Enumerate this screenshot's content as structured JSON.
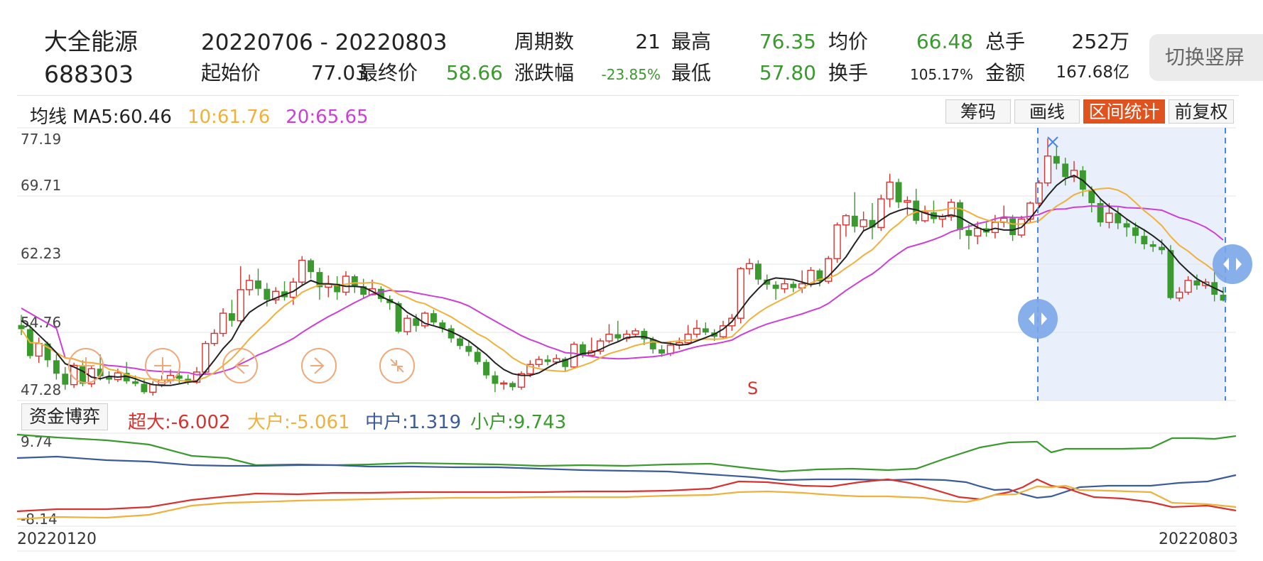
{
  "header": {
    "stock_name": "大全能源",
    "stock_code": "688303",
    "date_range": "20220706  - 20220803",
    "labels": {
      "periods": "周期数",
      "high": "最高",
      "avg": "均价",
      "total_vol": "总手",
      "start_price": "起始价",
      "end_price": "最终价",
      "change_pct": "涨跌幅",
      "low": "最低",
      "turnover": "换手",
      "amount": "金额"
    },
    "values": {
      "periods": "21",
      "high": "76.35",
      "avg": "66.48",
      "total_vol": "252万",
      "start_price": "77.03",
      "end_price": "58.66",
      "change_pct": "-23.85%",
      "low": "57.80",
      "turnover": "105.17%",
      "amount": "167.68亿"
    },
    "switch_button": "切换竖屏"
  },
  "ma_bar": {
    "label": "均线",
    "ma5": "MA5:60.46",
    "ma10": "10:61.76",
    "ma20": "20:65.65"
  },
  "toolbar": {
    "chips": "筹码",
    "draw": "画线",
    "range_stats": "区间统计",
    "adjust": "前复权"
  },
  "price_axis": [
    "77.19",
    "69.71",
    "62.23",
    "54.76",
    "47.28"
  ],
  "marker_s": "S",
  "fund_panel": {
    "button": "资金博弈",
    "super_large": "超大:-6.002",
    "large": "大户:-5.061",
    "medium": "中户:1.319",
    "small": "小户:9.743",
    "axis_top": "9.74",
    "axis_bottom": "-8.14"
  },
  "dates": {
    "start": "20220120",
    "end": "20220803"
  },
  "colors": {
    "up": "#d8322f",
    "down": "#3a9a2e",
    "ma5": "#222222",
    "ma10": "#f0b13c",
    "ma20": "#cc3fd6",
    "medium": "#3b5b9a",
    "selection": "#e9f0fb",
    "selection_line": "#4a86e0",
    "accent": "#e0531f"
  },
  "icons": [
    "add-icon",
    "arrow-left-icon",
    "arrow-right-icon",
    "shrink-icon",
    "range-handle-icon",
    "cross-marker-icon"
  ],
  "chart_data": {
    "type": "candlestick",
    "price_range": [
      47.28,
      77.19
    ],
    "candles": [
      [
        55,
        54.5,
        56.2,
        53.8
      ],
      [
        54.5,
        51.3,
        55,
        51
      ],
      [
        51.3,
        52.8,
        53.5,
        50.5
      ],
      [
        52.8,
        50.8,
        53,
        50
      ],
      [
        50.8,
        49.2,
        51.5,
        48.5
      ],
      [
        49.2,
        47.9,
        50,
        47.3
      ],
      [
        47.9,
        50.2,
        50.5,
        47.5
      ],
      [
        50.2,
        48,
        50.8,
        47.7
      ],
      [
        48,
        49.8,
        50.2,
        47.6
      ],
      [
        49.8,
        48.9,
        51.5,
        48.4
      ],
      [
        48.9,
        48.5,
        49.5,
        48
      ],
      [
        48.5,
        49.3,
        49.8,
        48.2
      ],
      [
        49.3,
        48.3,
        50.6,
        48
      ],
      [
        48.3,
        48,
        49,
        47.7
      ],
      [
        48,
        47,
        48.5,
        46.8
      ],
      [
        47,
        47.9,
        48.3,
        46.6
      ],
      [
        47.9,
        48.4,
        49,
        47.6
      ],
      [
        48.4,
        49,
        49.7,
        48
      ],
      [
        49,
        48.6,
        49.5,
        48.1
      ],
      [
        48.6,
        48.2,
        49.1,
        47.9
      ],
      [
        48.2,
        49.4,
        50,
        48
      ],
      [
        49.4,
        52.8,
        53.1,
        49.2
      ],
      [
        52.8,
        54,
        54.5,
        52.5
      ],
      [
        54,
        56.4,
        57,
        53.6
      ],
      [
        56.4,
        55.5,
        58,
        54.8
      ],
      [
        55.5,
        59.2,
        62,
        55
      ],
      [
        59.2,
        60.3,
        61,
        58.5
      ],
      [
        60.3,
        59.3,
        61.7,
        58.5
      ],
      [
        59.3,
        58,
        60,
        57.2
      ],
      [
        58,
        59,
        59.5,
        57.5
      ],
      [
        59,
        58.3,
        60.2,
        57.9
      ],
      [
        58.3,
        60.1,
        60.6,
        57.4
      ],
      [
        60.1,
        62.7,
        63.2,
        59.8
      ],
      [
        62.7,
        61.3,
        62.9,
        60.5
      ],
      [
        61.3,
        59.5,
        61.8,
        58
      ],
      [
        59.5,
        59.9,
        60.9,
        58.3
      ],
      [
        59.9,
        58.9,
        60.8,
        58
      ],
      [
        58.9,
        60.8,
        61.4,
        58.5
      ],
      [
        60.8,
        59.6,
        61,
        58.8
      ],
      [
        59.6,
        58.6,
        60.5,
        58.1
      ],
      [
        58.6,
        59.3,
        60.4,
        58.5
      ],
      [
        59.3,
        58.1,
        59.6,
        57.7
      ],
      [
        58.1,
        57.6,
        58.5,
        56.8
      ],
      [
        57.6,
        54.2,
        57.8,
        54
      ],
      [
        54.2,
        55.8,
        56.2,
        53.8
      ],
      [
        55.8,
        54.9,
        56.3,
        54.2
      ],
      [
        54.9,
        56.4,
        56.6,
        54.6
      ],
      [
        56.4,
        55.3,
        56.8,
        55
      ],
      [
        55.3,
        54.6,
        55.6,
        54.1
      ],
      [
        54.6,
        53.4,
        55,
        52.9
      ],
      [
        53.4,
        52.5,
        53.8,
        52.1
      ],
      [
        52.5,
        51.8,
        53.2,
        51.3
      ],
      [
        51.8,
        50.6,
        52.3,
        50.3
      ],
      [
        50.6,
        49,
        50.9,
        48.6
      ],
      [
        49,
        48,
        49.5,
        47
      ],
      [
        48,
        48.1,
        48.4,
        47.3
      ],
      [
        48.1,
        47.6,
        48.3,
        47.2
      ],
      [
        47.6,
        49.2,
        49.5,
        47.3
      ],
      [
        49.2,
        50.3,
        50.8,
        48.8
      ],
      [
        50.3,
        50.9,
        51.3,
        50
      ],
      [
        50.9,
        50.6,
        51.4,
        50.2
      ],
      [
        50.6,
        51,
        51.5,
        50.3
      ],
      [
        51,
        50,
        51.2,
        49.4
      ],
      [
        50,
        52.7,
        53,
        49.8
      ],
      [
        52.7,
        51.4,
        53,
        51.1
      ],
      [
        51.4,
        51.9,
        53.5,
        51.2
      ],
      [
        51.9,
        53.1,
        53.4,
        51.5
      ],
      [
        53.1,
        53.9,
        55.1,
        52.8
      ],
      [
        53.9,
        53.4,
        55.5,
        53
      ],
      [
        53.4,
        53.9,
        54.4,
        53
      ],
      [
        53.9,
        54.3,
        54.6,
        53.6
      ],
      [
        54.3,
        53.3,
        54.6,
        52.6
      ],
      [
        53.3,
        52.1,
        53.6,
        51.6
      ],
      [
        52.1,
        51.6,
        52.6,
        51.2
      ],
      [
        51.6,
        52.6,
        53.1,
        51.3
      ],
      [
        52.6,
        52.9,
        53.5,
        52.1
      ],
      [
        52.9,
        53.9,
        55,
        52.7
      ],
      [
        53.9,
        54.6,
        55.6,
        53.5
      ],
      [
        54.6,
        54.1,
        55.3,
        53.8
      ],
      [
        54.1,
        53.6,
        54.5,
        53.1
      ],
      [
        53.6,
        54.9,
        55.5,
        53.4
      ],
      [
        54.9,
        55.8,
        56.3,
        54.3
      ],
      [
        55.8,
        61.7,
        61.9,
        55.2
      ],
      [
        61.7,
        62.3,
        62.9,
        61
      ],
      [
        62.3,
        60.4,
        62.7,
        59.8
      ],
      [
        60.4,
        59.8,
        61,
        59.2
      ],
      [
        59.8,
        59.3,
        60.2,
        58
      ],
      [
        59.3,
        59.9,
        60.4,
        58.8
      ],
      [
        59.9,
        59.4,
        60.2,
        58.9
      ],
      [
        59.4,
        59.9,
        61.5,
        58.8
      ],
      [
        59.9,
        61.5,
        61.9,
        59.5
      ],
      [
        61.5,
        60.2,
        61.7,
        59.6
      ],
      [
        60.2,
        62.9,
        63.2,
        59.9
      ],
      [
        62.9,
        66.9,
        67.2,
        62.4
      ],
      [
        66.9,
        68,
        68.2,
        65.5
      ],
      [
        68,
        66.7,
        70.8,
        66
      ],
      [
        66.7,
        67.5,
        68.5,
        66.2
      ],
      [
        67.5,
        66.6,
        69.5,
        65.2
      ],
      [
        66.6,
        70,
        70.5,
        66.2
      ],
      [
        70,
        72,
        73,
        69
      ],
      [
        72,
        69.6,
        72.4,
        68.9
      ],
      [
        69.6,
        69.8,
        70.3,
        68.1
      ],
      [
        69.8,
        67.4,
        71.2,
        67
      ],
      [
        67.4,
        68.4,
        69.2,
        67.2
      ],
      [
        68.4,
        67.6,
        69.8,
        67.1
      ],
      [
        67.6,
        67.9,
        68.2,
        66.6
      ],
      [
        67.9,
        69.6,
        70,
        67.4
      ],
      [
        69.6,
        66.3,
        69.9,
        65.2
      ],
      [
        66.3,
        65.6,
        67,
        64
      ],
      [
        65.6,
        66.5,
        67.3,
        64.6
      ],
      [
        66.5,
        66,
        67.2,
        65.5
      ],
      [
        66,
        67.2,
        68.1,
        65.3
      ],
      [
        67.2,
        67.7,
        69.2,
        66.6
      ],
      [
        67.7,
        65.7,
        68.1,
        65
      ],
      [
        65.7,
        67.6,
        68,
        65.4
      ],
      [
        67.6,
        69.5,
        69.7,
        67.1
      ],
      [
        69.5,
        71.9,
        72.2,
        69
      ],
      [
        71.9,
        75.1,
        77.19,
        71.5
      ],
      [
        75.1,
        74.2,
        76.35,
        73.5
      ],
      [
        74.2,
        72.6,
        74.9,
        71.6
      ],
      [
        72.6,
        73.4,
        74.5,
        72
      ],
      [
        73.4,
        71.1,
        73.9,
        70.3
      ],
      [
        71.1,
        69.5,
        71.5,
        68.4
      ],
      [
        69.5,
        67.2,
        70.1,
        66.7
      ],
      [
        67.2,
        68.3,
        69.5,
        66.5
      ],
      [
        68.3,
        67.1,
        69,
        66.4
      ],
      [
        67.1,
        66.6,
        67.6,
        65.5
      ],
      [
        66.6,
        65.6,
        67.2,
        64.7
      ],
      [
        65.6,
        64.6,
        66.4,
        64
      ],
      [
        64.6,
        64.3,
        65,
        63.7
      ],
      [
        64.3,
        63.9,
        65.2,
        63.4
      ],
      [
        63.9,
        58.2,
        64.5,
        58
      ],
      [
        58.2,
        58.9,
        59.5,
        57.8
      ],
      [
        58.9,
        60.3,
        60.8,
        58.6
      ],
      [
        60.3,
        59.7,
        61,
        59.2
      ],
      [
        59.7,
        60.1,
        60.5,
        59.3
      ],
      [
        60.1,
        58.6,
        61.3,
        57.8
      ],
      [
        58.6,
        57.9,
        59.5,
        57.8
      ]
    ],
    "ma5": [
      55.5,
      54.8,
      53.8,
      52.8,
      51.7,
      50.4,
      50,
      49.5,
      48.8,
      48.6,
      48.9,
      48.8,
      48.9,
      48.6,
      48.2,
      47.9,
      47.8,
      47.8,
      48,
      48.2,
      48.3,
      49.5,
      50.8,
      52.2,
      53.3,
      55.2,
      56.5,
      57.2,
      57.8,
      58.2,
      58.6,
      59,
      59.7,
      60.3,
      59.9,
      59.9,
      59.8,
      59.6,
      59.6,
      59.5,
      59,
      58.4,
      57.9,
      57.4,
      56.5,
      55.9,
      55.2,
      54.9,
      54.6,
      54.2,
      53.7,
      53.1,
      52.3,
      51.5,
      50.5,
      49.7,
      49.2,
      49,
      49,
      49.3,
      49.9,
      50.5,
      50.8,
      51.2,
      51.6,
      51.7,
      52.1,
      52.6,
      53,
      53.5,
      53.6,
      53.6,
      53.3,
      52.9,
      52.8,
      52.6,
      52.7,
      53.1,
      53.5,
      53.9,
      54.5,
      55.4,
      56.8,
      58.2,
      59.3,
      60.3,
      60.6,
      60.5,
      60.4,
      60.1,
      59.8,
      60,
      60.8,
      61.9,
      63.1,
      64.7,
      66.2,
      66.7,
      67.5,
      68.2,
      68.6,
      68.9,
      68.7,
      68.3,
      68,
      67.9,
      68.1,
      67.8,
      67.2,
      66.6,
      66.2,
      66.5,
      66.3,
      66.3,
      66.6,
      67.7,
      69,
      70.4,
      71.6,
      72.4,
      72.8,
      72.2,
      71.2,
      70,
      69.1,
      68.4,
      67.6,
      66.9,
      66.3,
      65.6,
      64.8,
      63.7,
      62.4,
      61.4,
      60.5,
      59.9,
      59.4,
      58.9
    ]
  }
}
